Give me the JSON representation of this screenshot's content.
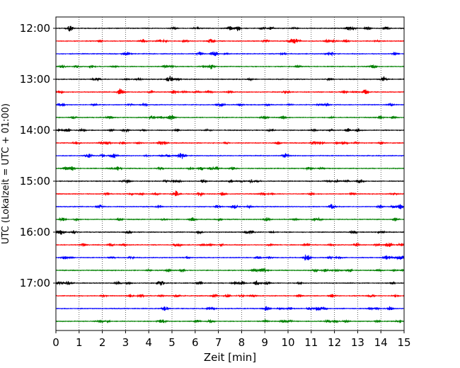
{
  "chart_data": {
    "type": "line",
    "title": "",
    "xlabel": "Zeit  [min]",
    "ylabel": "UTC (Lokalzeit = UTC + 01:00)",
    "xlim": [
      0,
      15
    ],
    "x_ticks": [
      "0",
      "1",
      "2",
      "3",
      "4",
      "5",
      "6",
      "7",
      "8",
      "9",
      "10",
      "11",
      "12",
      "13",
      "14",
      "15"
    ],
    "y_tick_labels": [
      "12:00",
      "13:00",
      "14:00",
      "15:00",
      "16:00",
      "17:00"
    ],
    "start_time": "12:00",
    "trace_interval_min": 15,
    "trace_count": 24,
    "grid": "vertical dotted",
    "colors": [
      "#000000",
      "#ff0000",
      "#0000ff",
      "#008000"
    ],
    "notable_bursts": [
      {
        "trace": 0,
        "x": 0.6,
        "amp": 1.0
      },
      {
        "trace": 0,
        "x": 7.5,
        "amp": 0.8
      },
      {
        "trace": 0,
        "x": 12.6,
        "amp": 0.7
      },
      {
        "trace": 1,
        "x": 10.4,
        "amp": 0.7
      },
      {
        "trace": 4,
        "x": 4.9,
        "amp": 0.8
      },
      {
        "trace": 5,
        "x": 6.6,
        "amp": 0.6
      },
      {
        "trace": 7,
        "x": 5.0,
        "amp": 0.8
      },
      {
        "trace": 8,
        "x": 3.0,
        "amp": 0.7
      },
      {
        "trace": 9,
        "x": 4.5,
        "amp": 0.7
      },
      {
        "trace": 10,
        "x": 1.4,
        "amp": 0.8
      },
      {
        "trace": 12,
        "x": 3.1,
        "amp": 0.6
      },
      {
        "trace": 13,
        "x": 5.2,
        "amp": 0.9
      },
      {
        "trace": 13,
        "x": 6.2,
        "amp": 0.9
      },
      {
        "trace": 15,
        "x": 5.9,
        "amp": 0.7
      },
      {
        "trace": 15,
        "x": 9.1,
        "amp": 0.8
      },
      {
        "trace": 16,
        "x": 8.4,
        "amp": 0.6
      },
      {
        "trace": 19,
        "x": 9.0,
        "amp": 0.8
      },
      {
        "trace": 19,
        "x": 11.6,
        "amp": 0.6
      },
      {
        "trace": 20,
        "x": 8.0,
        "amp": 0.7
      },
      {
        "trace": 22,
        "x": 4.7,
        "amp": 0.8
      },
      {
        "trace": 23,
        "x": 9.8,
        "amp": 0.6
      }
    ]
  }
}
